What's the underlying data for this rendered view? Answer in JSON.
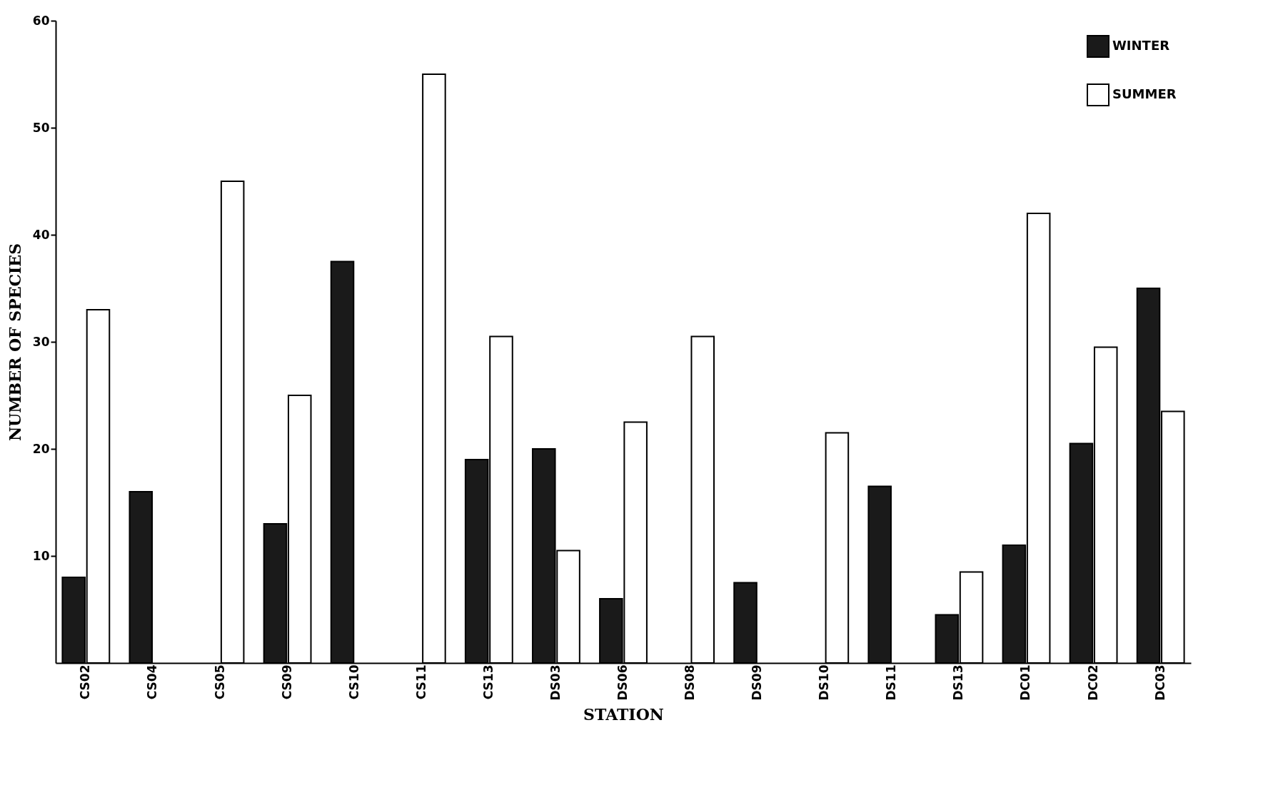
{
  "chart_data": {
    "type": "bar",
    "xlabel": "STATION",
    "ylabel": "NUMBER OF SPECIES",
    "categories": [
      "CS02",
      "CS04",
      "CS05",
      "CS09",
      "CS10",
      "CS11",
      "CS13",
      "DS03",
      "DS06",
      "DS08",
      "DS09",
      "DS10",
      "DS11",
      "DS13",
      "DC01",
      "DC02",
      "DC03"
    ],
    "series": [
      {
        "name": "WINTER",
        "color": "#1a1a1a",
        "values": [
          8,
          16,
          null,
          13,
          37.5,
          null,
          19,
          20,
          6,
          null,
          7.5,
          null,
          16.5,
          4.5,
          11,
          20.5,
          35
        ]
      },
      {
        "name": "SUMMER",
        "color": "#ffffff",
        "values": [
          33,
          null,
          45,
          25,
          null,
          55,
          30.5,
          10.5,
          22.5,
          30.5,
          null,
          21.5,
          null,
          8.5,
          42,
          29.5,
          23.5
        ]
      }
    ],
    "ylim": [
      0,
      60
    ],
    "yticks": [
      10,
      20,
      30,
      40,
      50,
      60
    ],
    "grid": false,
    "legend": "top right"
  }
}
